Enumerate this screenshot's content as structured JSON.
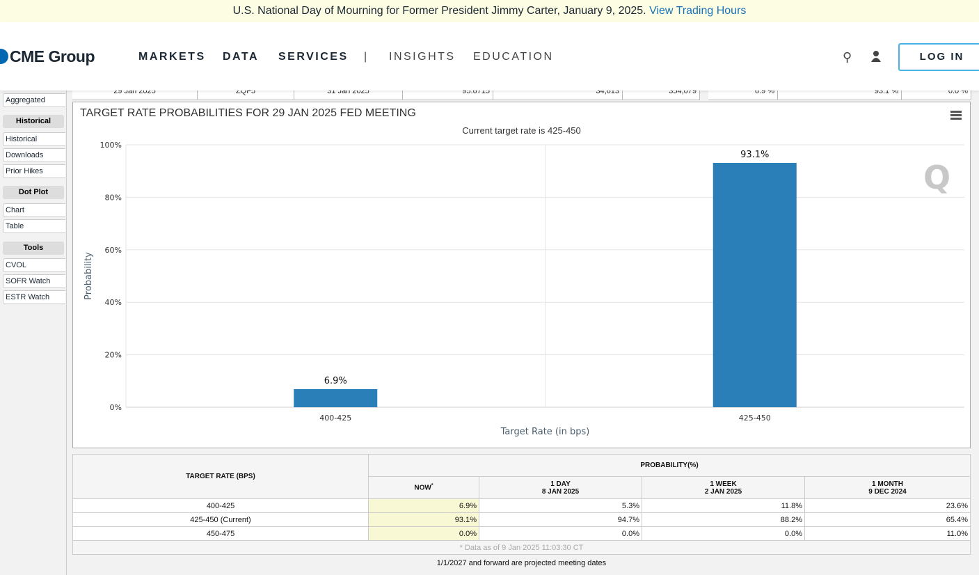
{
  "banner": {
    "text": "U.S. National Day of Mourning for Former President Jimmy Carter, January 9, 2025.",
    "link": "View Trading Hours"
  },
  "header": {
    "logo": "CME Group",
    "nav": [
      "MARKETS",
      "DATA",
      "SERVICES",
      "|",
      "INSIGHTS",
      "EDUCATION"
    ],
    "login": "LOG IN"
  },
  "sidebar": {
    "aggregated": "Aggregated",
    "groups": [
      {
        "title": "Historical",
        "items": [
          "Historical",
          "Downloads",
          "Prior Hikes"
        ]
      },
      {
        "title": "Dot Plot",
        "items": [
          "Chart",
          "Table"
        ]
      },
      {
        "title": "Tools",
        "items": [
          "CVOL",
          "SOFR Watch",
          "ESTR Watch"
        ]
      }
    ]
  },
  "top_row": [
    "29 Jan 2025",
    "ZQF5",
    "31 Jan 2025",
    "95.6715",
    "34,613",
    "354,079",
    "6.9 %",
    "93.1 %",
    "0.0 %"
  ],
  "chart_data": {
    "type": "bar",
    "title": "TARGET RATE PROBABILITIES FOR 29 JAN 2025 FED MEETING",
    "subtitle": "Current target rate is 425-450",
    "xlabel": "Target Rate (in bps)",
    "ylabel": "Probability",
    "categories": [
      "400-425",
      "425-450"
    ],
    "values": [
      6.9,
      93.1
    ],
    "data_labels": [
      "6.9%",
      "93.1%"
    ],
    "ylim": [
      0,
      100
    ],
    "yticks": [
      "0%",
      "20%",
      "40%",
      "60%",
      "80%",
      "100%"
    ],
    "bar_color": "#2a7fb8",
    "grid": true
  },
  "table": {
    "col1": "TARGET RATE (BPS)",
    "prob": "PROBABILITY(%)",
    "cols": [
      {
        "a": "NOW",
        "b": "",
        "star": "*"
      },
      {
        "a": "1 DAY",
        "b": "8 JAN 2025"
      },
      {
        "a": "1 WEEK",
        "b": "2 JAN 2025"
      },
      {
        "a": "1 MONTH",
        "b": "9 DEC 2024"
      }
    ],
    "rows": [
      {
        "rate": "400-425",
        "v": [
          "6.9%",
          "5.3%",
          "11.8%",
          "23.6%"
        ]
      },
      {
        "rate": "425-450 (Current)",
        "v": [
          "93.1%",
          "94.7%",
          "88.2%",
          "65.4%"
        ]
      },
      {
        "rate": "450-475",
        "v": [
          "0.0%",
          "0.0%",
          "0.0%",
          "11.0%"
        ]
      }
    ],
    "note": "* Data as of 9 Jan 2025 11:03:30 CT"
  },
  "footer": "1/1/2027 and forward are projected meeting dates"
}
